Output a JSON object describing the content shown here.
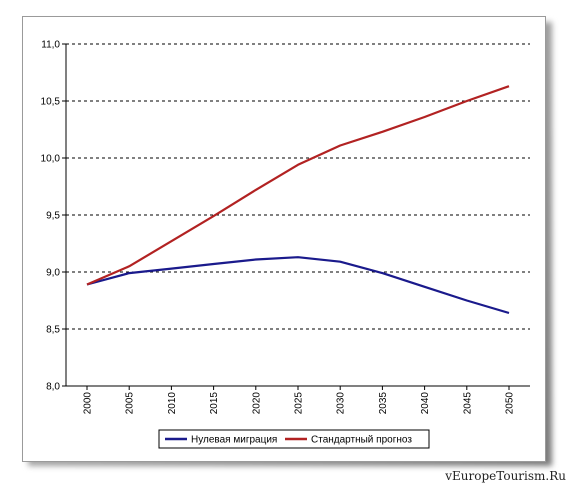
{
  "chart_data": {
    "type": "line",
    "x": [
      "2000",
      "2005",
      "2010",
      "2015",
      "2020",
      "2025",
      "2030",
      "2035",
      "2040",
      "2045",
      "2050"
    ],
    "ylim": [
      8.0,
      11.0
    ],
    "yticks": [
      "8,0",
      "8,5",
      "9,0",
      "9,5",
      "10,0",
      "10,5",
      "11,0"
    ],
    "ytick_values": [
      8.0,
      8.5,
      9.0,
      9.5,
      10.0,
      10.5,
      11.0
    ],
    "grid": "horizontal-dashed",
    "legend_position": "bottom",
    "series": [
      {
        "name": "Нулевая миграция",
        "color": "#1a1a8c",
        "values": [
          8.89,
          8.99,
          9.03,
          9.07,
          9.11,
          9.13,
          9.09,
          8.99,
          8.87,
          8.75,
          8.64
        ]
      },
      {
        "name": "Стандартный прогноз",
        "color": "#b22222",
        "values": [
          8.89,
          9.05,
          9.27,
          9.49,
          9.72,
          9.94,
          10.11,
          10.23,
          10.36,
          10.5,
          10.63
        ]
      }
    ]
  },
  "watermark": "vEuropeTourism.Ru"
}
